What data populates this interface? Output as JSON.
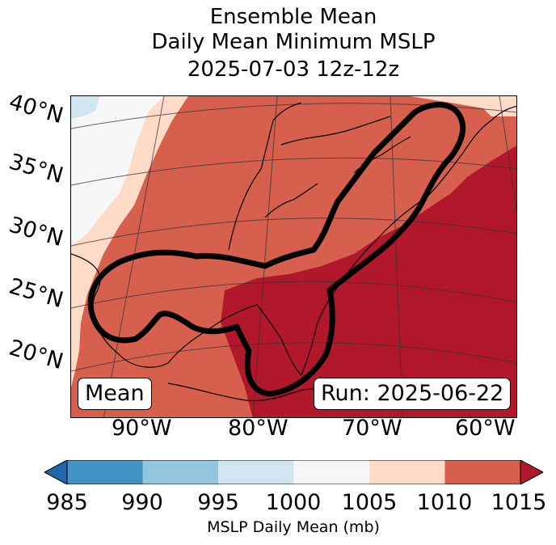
{
  "title": {
    "line1": "Ensemble Mean",
    "line2": "Daily Mean Minimum MSLP",
    "line3": "2025-07-03 12z-12z"
  },
  "map": {
    "lat_labels": [
      "40°N",
      "35°N",
      "30°N",
      "25°N",
      "20°N"
    ],
    "lon_labels": [
      "90°W",
      "80°W",
      "70°W",
      "60°W"
    ],
    "mean_box": "Mean",
    "run_box": "Run: 2025-06-22",
    "region": "Eastern United States, Gulf of Mexico and western Atlantic",
    "outline_color": "#000000"
  },
  "colorbar": {
    "ticks": [
      "985",
      "990",
      "995",
      "1000",
      "1005",
      "1010",
      "1015"
    ],
    "colors": [
      "#2166ac",
      "#4393c3",
      "#92c5de",
      "#d1e5f0",
      "#f7f7f7",
      "#fddbc7",
      "#d6604d",
      "#b2182b"
    ],
    "label": "MSLP Daily Mean (mb)"
  }
}
